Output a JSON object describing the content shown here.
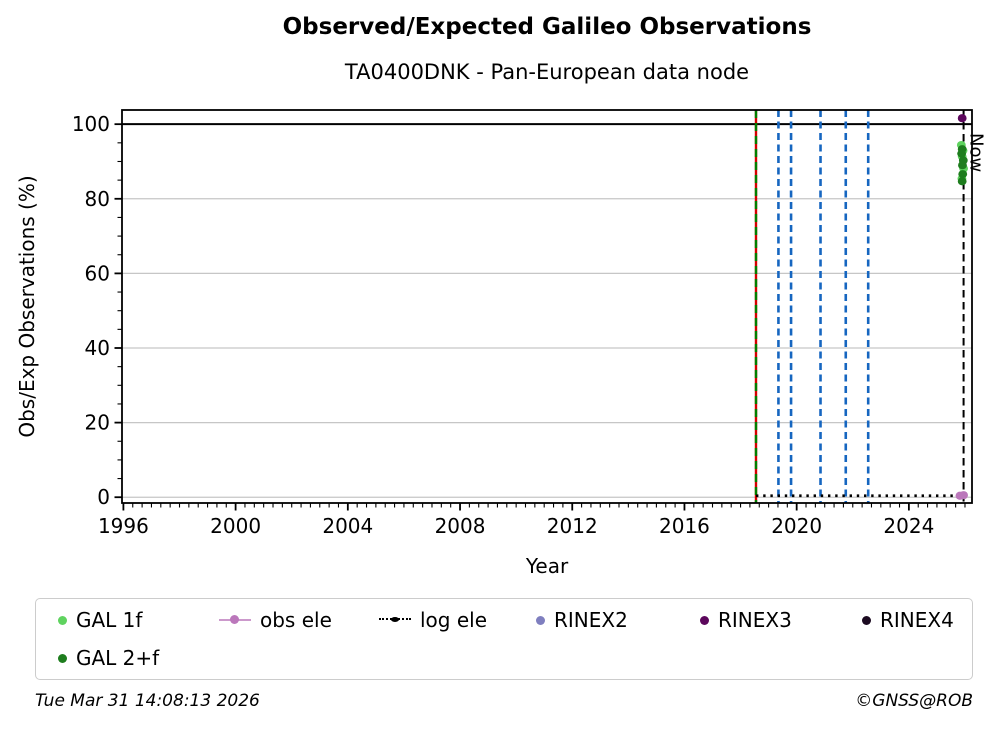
{
  "figure": {
    "footer_left": "Tue Mar 31 14:08:13 2026",
    "footer_right": "©GNSS@ROB"
  },
  "chart_data": {
    "type": "scatter",
    "title": "Observed/Expected Galileo Observations",
    "subtitle": "TA0400DNK - Pan-European data node",
    "xlabel": "Year",
    "ylabel": "Obs/Exp Observations (%)",
    "xlim": [
      1995.95,
      2026.25
    ],
    "ylim": [
      -1.55,
      103.8
    ],
    "xticks": [
      1996,
      2000,
      2004,
      2008,
      2012,
      2016,
      2020,
      2024
    ],
    "yticks": [
      0,
      20,
      40,
      60,
      80,
      100
    ],
    "x_minor_step_years": 0.33333,
    "y_minor_step": 5,
    "grid": {
      "on": true,
      "color": "#c6c6c6",
      "y_values": [
        0,
        20,
        40,
        60,
        80
      ]
    },
    "reference_line": {
      "y": 100,
      "color": "#000000"
    },
    "event_lines": [
      {
        "x": 2018.55,
        "style": "dashed",
        "color": "#008000",
        "overlay_color": "#d40000",
        "kind": "green-red"
      },
      {
        "x": 2019.35,
        "style": "dashed",
        "color": "#1666c0",
        "kind": "blue"
      },
      {
        "x": 2019.8,
        "style": "dashed",
        "color": "#1666c0",
        "kind": "blue"
      },
      {
        "x": 2020.85,
        "style": "dashed",
        "color": "#1666c0",
        "kind": "blue"
      },
      {
        "x": 2021.75,
        "style": "dashed",
        "color": "#1666c0",
        "kind": "blue"
      },
      {
        "x": 2022.55,
        "style": "dashed",
        "color": "#1666c0",
        "kind": "blue"
      }
    ],
    "now_line": {
      "x": 2025.95,
      "label": "Now",
      "style": "dashed",
      "color": "#000000"
    },
    "zero_dotted_line": {
      "name": "log ele",
      "y": 0.4,
      "x_start": 2018.55,
      "x_end": 2025.7,
      "style": "dotted",
      "color": "#000000"
    },
    "series": [
      {
        "name": "GAL 1f",
        "color": "#5fd35f",
        "marker": "dot",
        "points": [
          [
            2025.87,
            94.4
          ],
          [
            2025.93,
            92.9
          ],
          [
            2025.9,
            91.3
          ],
          [
            2025.95,
            88.1
          ],
          [
            2025.89,
            85.4
          ]
        ]
      },
      {
        "name": "GAL 2+f",
        "color": "#1e7d1e",
        "marker": "dot",
        "points": [
          [
            2025.9,
            93.3
          ],
          [
            2025.88,
            92.1
          ],
          [
            2025.94,
            90.3
          ],
          [
            2025.91,
            89.0
          ],
          [
            2025.92,
            86.6
          ],
          [
            2025.9,
            84.7
          ]
        ]
      },
      {
        "name": "obs ele",
        "color": "#bb77bb",
        "line_color": "#cc99cc",
        "marker": "line-dot",
        "points": [
          [
            2025.82,
            0.4
          ],
          [
            2025.95,
            0.55
          ]
        ]
      },
      {
        "name": "log ele",
        "color": "#000000",
        "marker": "dotted-line",
        "points": []
      },
      {
        "name": "RINEX2",
        "color": "#7f7fbf",
        "marker": "dot",
        "points": []
      },
      {
        "name": "RINEX3",
        "color": "#5c075c",
        "marker": "dot",
        "points": [
          [
            2025.9,
            101.6
          ]
        ]
      },
      {
        "name": "RINEX4",
        "color": "#1c0b21",
        "marker": "dot",
        "points": []
      }
    ],
    "legend": {
      "position": "bottom",
      "entries": [
        {
          "label": "GAL 1f",
          "marker": "dot",
          "color": "#5fd35f",
          "row": 0,
          "col": 0
        },
        {
          "label": "obs ele",
          "marker": "line-dot",
          "color": "#bb77bb",
          "line_color": "#cc99cc",
          "row": 0,
          "col": 1
        },
        {
          "label": "log ele",
          "marker": "dotted-line",
          "color": "#000000",
          "row": 0,
          "col": 2
        },
        {
          "label": "RINEX2",
          "marker": "dot",
          "color": "#7f7fbf",
          "row": 0,
          "col": 3
        },
        {
          "label": "RINEX3",
          "marker": "dot",
          "color": "#5c075c",
          "row": 0,
          "col": 4
        },
        {
          "label": "RINEX4",
          "marker": "dot",
          "color": "#1c0b21",
          "row": 0,
          "col": 5
        },
        {
          "label": "GAL 2+f",
          "marker": "dot",
          "color": "#1e7d1e",
          "row": 1,
          "col": 0
        }
      ]
    }
  }
}
